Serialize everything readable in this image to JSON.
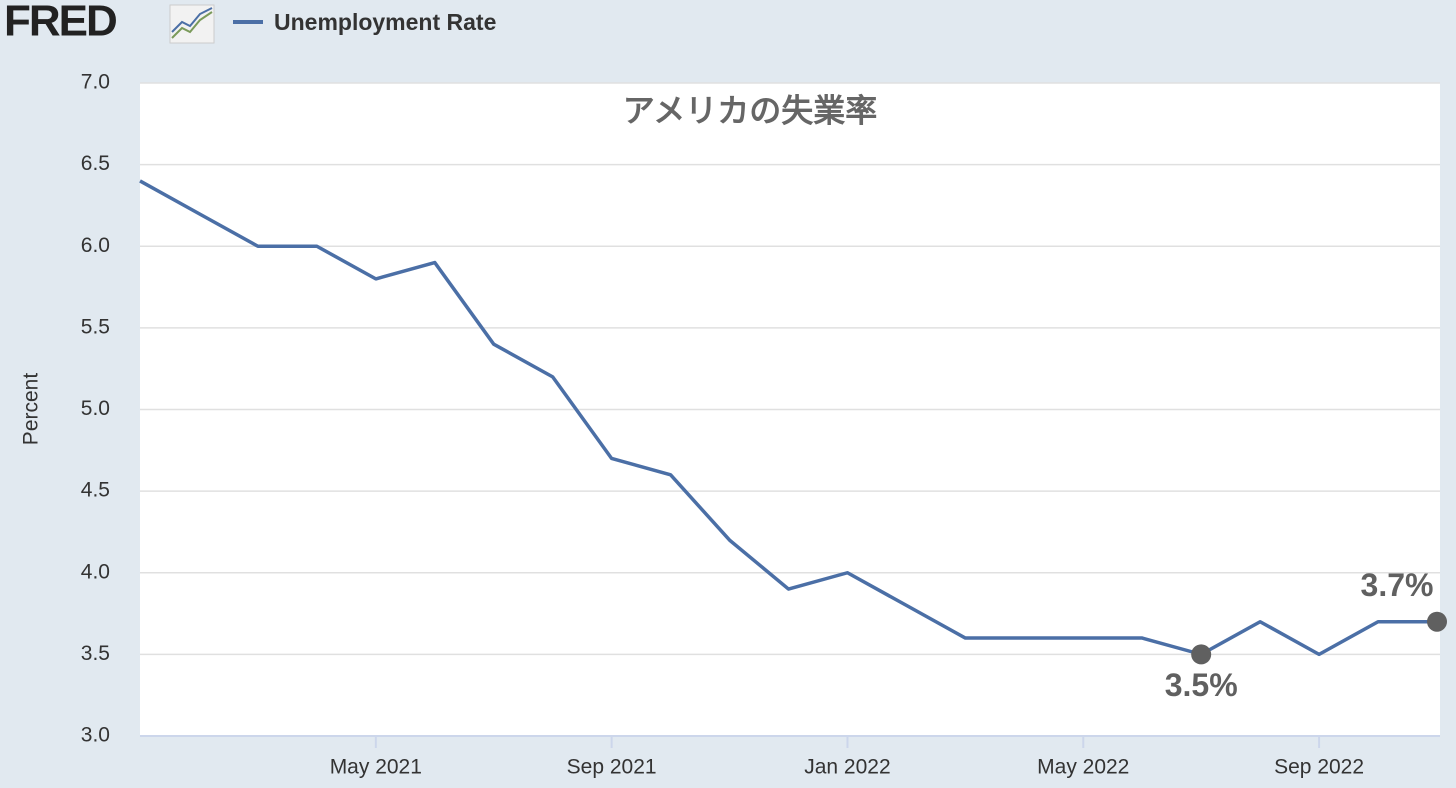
{
  "header": {
    "logo": "FRED"
  },
  "chart_data": {
    "type": "line",
    "title": "アメリカの失業率",
    "y_label": "Percent",
    "x": [
      "2021-01",
      "2021-02",
      "2021-03",
      "2021-04",
      "2021-05",
      "2021-06",
      "2021-07",
      "2021-08",
      "2021-09",
      "2021-10",
      "2021-11",
      "2021-12",
      "2022-01",
      "2022-02",
      "2022-03",
      "2022-04",
      "2022-05",
      "2022-06",
      "2022-07",
      "2022-08",
      "2022-09",
      "2022-10",
      "2022-11"
    ],
    "series": [
      {
        "name": "Unemployment Rate",
        "color": "#4b6fa6",
        "values": [
          6.4,
          6.2,
          6.0,
          6.0,
          5.8,
          5.9,
          5.4,
          5.2,
          4.7,
          4.6,
          4.2,
          3.9,
          4.0,
          3.8,
          3.6,
          3.6,
          3.6,
          3.6,
          3.5,
          3.7,
          3.5,
          3.7,
          3.7
        ]
      }
    ],
    "annotations": [
      {
        "x": "2022-07",
        "value": 3.5,
        "label": "3.5%"
      },
      {
        "x": "2022-11",
        "value": 3.7,
        "label": "3.7%"
      }
    ],
    "xlim": [
      "2021-01",
      "2022-11"
    ],
    "xticks": [
      {
        "value": "2021-05",
        "label": "May 2021"
      },
      {
        "value": "2021-09",
        "label": "Sep 2021"
      },
      {
        "value": "2022-01",
        "label": "Jan 2022"
      },
      {
        "value": "2022-05",
        "label": "May 2022"
      },
      {
        "value": "2022-09",
        "label": "Sep 2022"
      }
    ],
    "ylim": [
      3,
      7
    ],
    "yticks": [
      {
        "value": 3,
        "label": "3.0"
      },
      {
        "value": 3.5,
        "label": "3.5"
      },
      {
        "value": 4,
        "label": "4.0"
      },
      {
        "value": 4.5,
        "label": "4.5"
      },
      {
        "value": 5,
        "label": "5.0"
      },
      {
        "value": 5.5,
        "label": "5.5"
      },
      {
        "value": 6,
        "label": "6.0"
      },
      {
        "value": 6.5,
        "label": "6.5"
      },
      {
        "value": 7,
        "label": "7.0"
      }
    ],
    "grid": true
  }
}
